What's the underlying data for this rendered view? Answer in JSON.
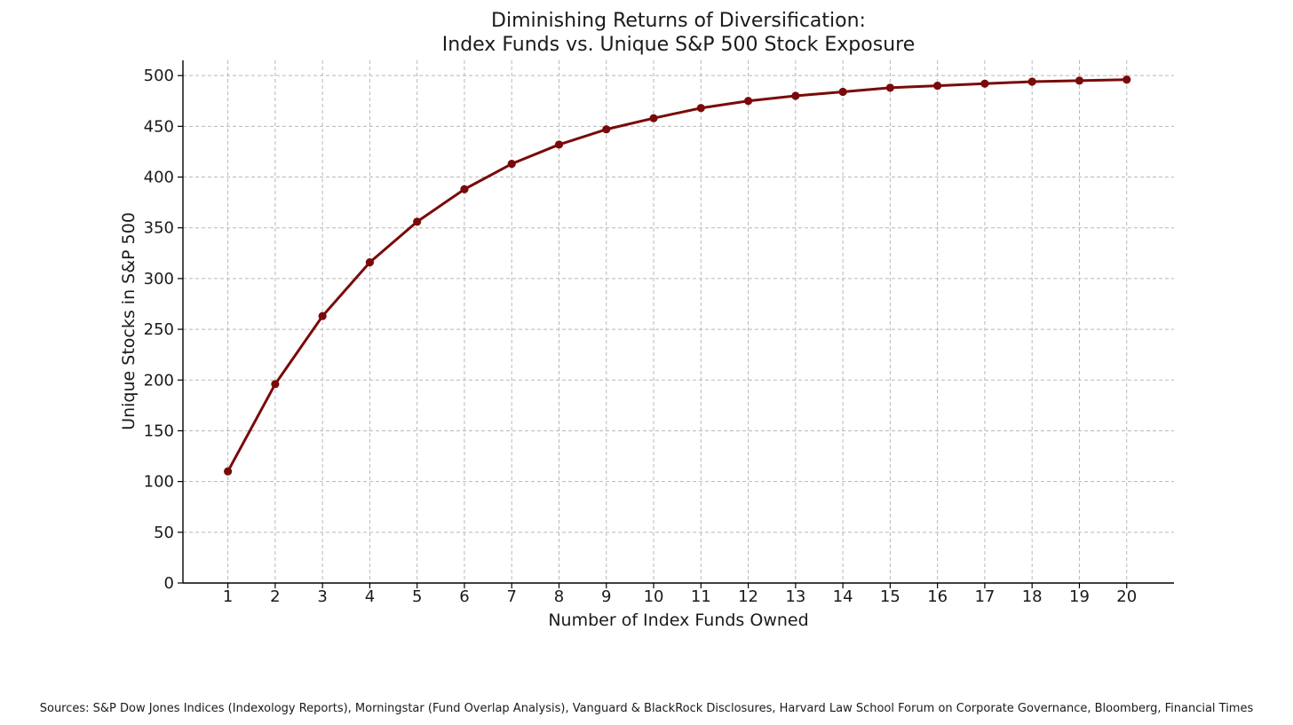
{
  "chart_data": {
    "type": "line",
    "title": [
      "Diminishing Returns of Diversification:",
      "Index Funds vs. Unique S&P 500 Stock Exposure"
    ],
    "xlabel": "Number of Index Funds Owned",
    "ylabel": "Unique Stocks in S&P 500",
    "x": [
      1,
      2,
      3,
      4,
      5,
      6,
      7,
      8,
      9,
      10,
      11,
      12,
      13,
      14,
      15,
      16,
      17,
      18,
      19,
      20
    ],
    "series": [
      {
        "values": [
          110,
          196,
          263,
          316,
          356,
          388,
          413,
          432,
          447,
          458,
          468,
          475,
          480,
          484,
          488,
          490,
          492,
          494,
          495,
          496
        ],
        "color": "#7a0a0a"
      }
    ],
    "xlim": [
      0.05,
      21.0
    ],
    "ylim": [
      0,
      515
    ],
    "yticks": [
      0,
      50,
      100,
      150,
      200,
      250,
      300,
      350,
      400,
      450,
      500
    ],
    "xticks": [
      1,
      2,
      3,
      4,
      5,
      6,
      7,
      8,
      9,
      10,
      11,
      12,
      13,
      14,
      15,
      16,
      17,
      18,
      19,
      20
    ],
    "grid": true,
    "legend": "none",
    "source": "Sources: S&P Dow Jones Indices (Indexology Reports), Morningstar (Fund Overlap Analysis), Vanguard & BlackRock Disclosures, Harvard Law School Forum on Corporate Governance, Bloomberg, Financial Times"
  }
}
